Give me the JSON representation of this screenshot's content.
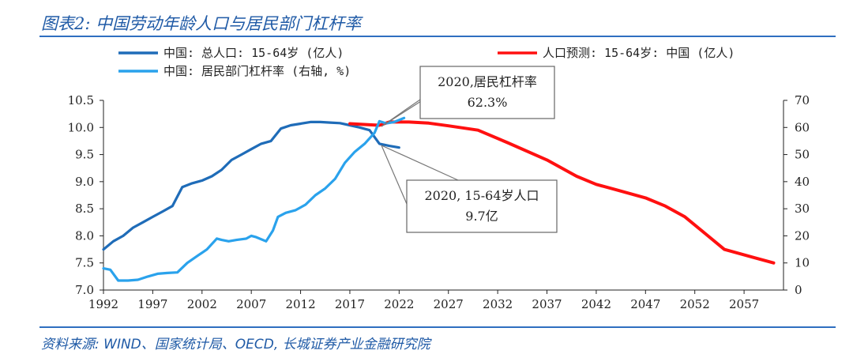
{
  "header": {
    "title": "图表2: 中国劳动年龄人口与居民部门杠杆率"
  },
  "footer": {
    "source": "资料来源: WIND、国家统计局、OECD, 长城证券产业金融研究院"
  },
  "colors": {
    "total_pop": "#1f6cb8",
    "forecast": "#ff1010",
    "leverage": "#2aa2ec",
    "accent": "#2f6fc0"
  },
  "legend": {
    "total_pop": "中国: 总人口: 15-64岁 (亿人)",
    "leverage": "中国: 居民部门杠杆率 (右轴, %)",
    "forecast": "人口预测: 15-64岁: 中国 (亿人)"
  },
  "callouts": {
    "leverage": {
      "line1": "2020,居民杠杆率",
      "line2": "62.3%"
    },
    "population": {
      "line1": "2020, 15-64岁人口",
      "line2": "9.7亿"
    }
  },
  "chart_data": {
    "type": "line",
    "x_ticks": [
      "1992",
      "1997",
      "2002",
      "2007",
      "2012",
      "2017",
      "2022",
      "2027",
      "2032",
      "2037",
      "2042",
      "2047",
      "2052",
      "2057"
    ],
    "left_axis": {
      "ticks": [
        "10.5",
        "10.0",
        "9.5",
        "9.0",
        "8.5",
        "8.0",
        "7.5",
        "7.0"
      ],
      "range": [
        7.0,
        10.5
      ]
    },
    "right_axis": {
      "ticks": [
        "70",
        "60",
        "50",
        "40",
        "30",
        "20",
        "10",
        "0"
      ],
      "range": [
        0,
        70
      ]
    },
    "series": [
      {
        "name": "中国: 总人口: 15-64岁 (亿人)",
        "axis": "left",
        "points": [
          [
            1992,
            7.75
          ],
          [
            1993,
            7.9
          ],
          [
            1994,
            8.0
          ],
          [
            1995,
            8.15
          ],
          [
            1996,
            8.25
          ],
          [
            1997,
            8.35
          ],
          [
            1998,
            8.45
          ],
          [
            1999,
            8.55
          ],
          [
            2000,
            8.9
          ],
          [
            2001,
            8.97
          ],
          [
            2002,
            9.02
          ],
          [
            2003,
            9.1
          ],
          [
            2004,
            9.22
          ],
          [
            2005,
            9.4
          ],
          [
            2006,
            9.5
          ],
          [
            2007,
            9.6
          ],
          [
            2008,
            9.7
          ],
          [
            2009,
            9.75
          ],
          [
            2010,
            9.98
          ],
          [
            2011,
            10.04
          ],
          [
            2012,
            10.07
          ],
          [
            2013,
            10.1
          ],
          [
            2014,
            10.1
          ],
          [
            2015,
            10.09
          ],
          [
            2016,
            10.08
          ],
          [
            2017,
            10.04
          ],
          [
            2018,
            10.0
          ],
          [
            2019,
            9.95
          ],
          [
            2020,
            9.7
          ],
          [
            2021,
            9.66
          ],
          [
            2022,
            9.63
          ]
        ]
      },
      {
        "name": "人口预测: 15-64岁: 中国 (亿人)",
        "axis": "left",
        "points": [
          [
            2017,
            10.07
          ],
          [
            2019,
            10.05
          ],
          [
            2020,
            10.04
          ],
          [
            2021,
            10.1
          ],
          [
            2023,
            10.1
          ],
          [
            2025,
            10.08
          ],
          [
            2027,
            10.03
          ],
          [
            2030,
            9.95
          ],
          [
            2033,
            9.72
          ],
          [
            2037,
            9.4
          ],
          [
            2040,
            9.1
          ],
          [
            2042,
            8.95
          ],
          [
            2044,
            8.85
          ],
          [
            2047,
            8.7
          ],
          [
            2049,
            8.55
          ],
          [
            2051,
            8.35
          ],
          [
            2053,
            8.05
          ],
          [
            2055,
            7.75
          ],
          [
            2058,
            7.6
          ],
          [
            2060,
            7.5
          ]
        ]
      },
      {
        "name": "中国: 居民部门杠杆率 (右轴, %)",
        "axis": "right",
        "points": [
          [
            1992,
            8.0
          ],
          [
            1992.7,
            7.5
          ],
          [
            1993.5,
            3.5
          ],
          [
            1994.5,
            3.5
          ],
          [
            1995.5,
            3.8
          ],
          [
            1996.5,
            5.0
          ],
          [
            1997.5,
            6.0
          ],
          [
            1998.5,
            6.3
          ],
          [
            1999.5,
            6.5
          ],
          [
            2000.5,
            10.0
          ],
          [
            2001.5,
            12.5
          ],
          [
            2002.5,
            15.0
          ],
          [
            2003.5,
            19.0
          ],
          [
            2004,
            18.5
          ],
          [
            2004.7,
            18.0
          ],
          [
            2005.5,
            18.5
          ],
          [
            2006.5,
            19.0
          ],
          [
            2007,
            20.0
          ],
          [
            2007.5,
            19.5
          ],
          [
            2008.5,
            18.0
          ],
          [
            2009.2,
            22.0
          ],
          [
            2009.7,
            27.0
          ],
          [
            2010.5,
            28.5
          ],
          [
            2011.5,
            29.5
          ],
          [
            2012.5,
            31.5
          ],
          [
            2013.5,
            35.0
          ],
          [
            2014.5,
            37.5
          ],
          [
            2015.5,
            41.0
          ],
          [
            2016.5,
            47.0
          ],
          [
            2017.5,
            51.0
          ],
          [
            2018.5,
            54.0
          ],
          [
            2019.5,
            58.0
          ],
          [
            2020,
            62.3
          ],
          [
            2020.7,
            61.5
          ],
          [
            2021.5,
            62.0
          ],
          [
            2022.5,
            63.5
          ]
        ]
      }
    ]
  }
}
